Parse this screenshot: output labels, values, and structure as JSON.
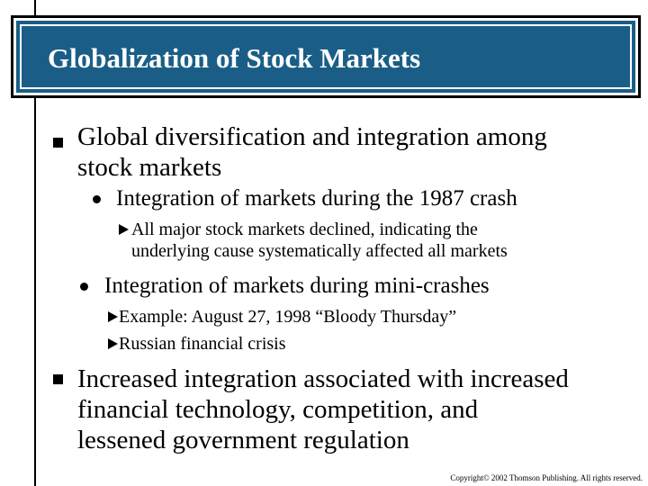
{
  "slide": {
    "title": "Globalization of Stock Markets",
    "colors": {
      "title_band": "#1a5e87",
      "title_text": "#ffffff",
      "text": "#000000"
    },
    "bullets": [
      {
        "level": 1,
        "marker": "square-bullet-icon",
        "lines": [
          "Global diversification and integration among",
          "stock markets"
        ]
      },
      {
        "level": 2,
        "marker": "round-bullet-icon",
        "lines": [
          "Integration of markets during the 1987 crash"
        ]
      },
      {
        "level": 3,
        "marker": "triangle-bullet-icon",
        "lines": [
          "All major stock markets declined, indicating the",
          "underlying cause systematically affected all markets"
        ]
      },
      {
        "level": 2,
        "marker": "round-bullet-icon",
        "lines": [
          "Integration of markets during mini-crashes"
        ]
      },
      {
        "level": 3,
        "marker": "triangle-bullet-icon",
        "lines": [
          "Example: August 27, 1998 “Bloody Thursday”"
        ]
      },
      {
        "level": 3,
        "marker": "triangle-bullet-icon",
        "lines": [
          "Russian financial crisis"
        ]
      },
      {
        "level": 1,
        "marker": "square-bullet-icon",
        "lines": [
          "Increased integration associated with increased",
          "financial technology, competition, and",
          "lessened government regulation"
        ]
      }
    ],
    "copyright": "Copyright© 2002 Thomson Publishing. All rights reserved."
  }
}
